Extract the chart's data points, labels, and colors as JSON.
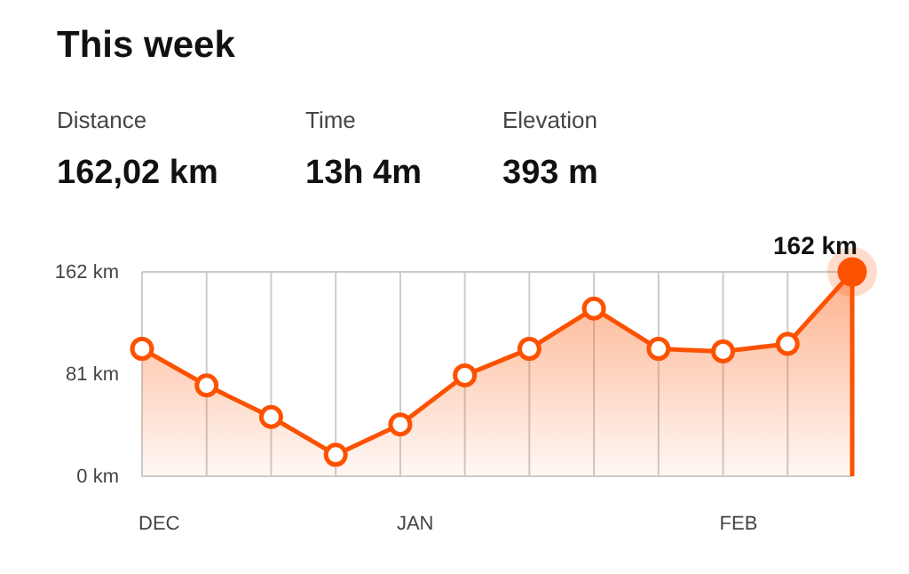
{
  "chart_data": {
    "type": "area",
    "title": "This week",
    "annotations": [
      "Distance",
      "162,02 km",
      "Time",
      "13h  4m",
      "Elevation",
      "393 m",
      "162 km"
    ],
    "categories": [
      "DEC",
      null,
      null,
      null,
      "JAN",
      null,
      null,
      null,
      null,
      "FEB",
      null,
      null
    ],
    "series": [
      {
        "color": "#fc5200",
        "values": [
          101,
          72,
          47,
          17,
          41,
          80,
          101,
          133,
          101,
          99,
          105,
          162
        ]
      }
    ],
    "ylim": [
      0,
      162
    ],
    "yticks": [
      {
        "value": 0,
        "label": "0 km"
      },
      {
        "value": 81,
        "label": "81 km"
      },
      {
        "value": 162,
        "label": "162 km"
      }
    ],
    "grid": "x",
    "marker": "circle",
    "line_style": "solid"
  }
}
